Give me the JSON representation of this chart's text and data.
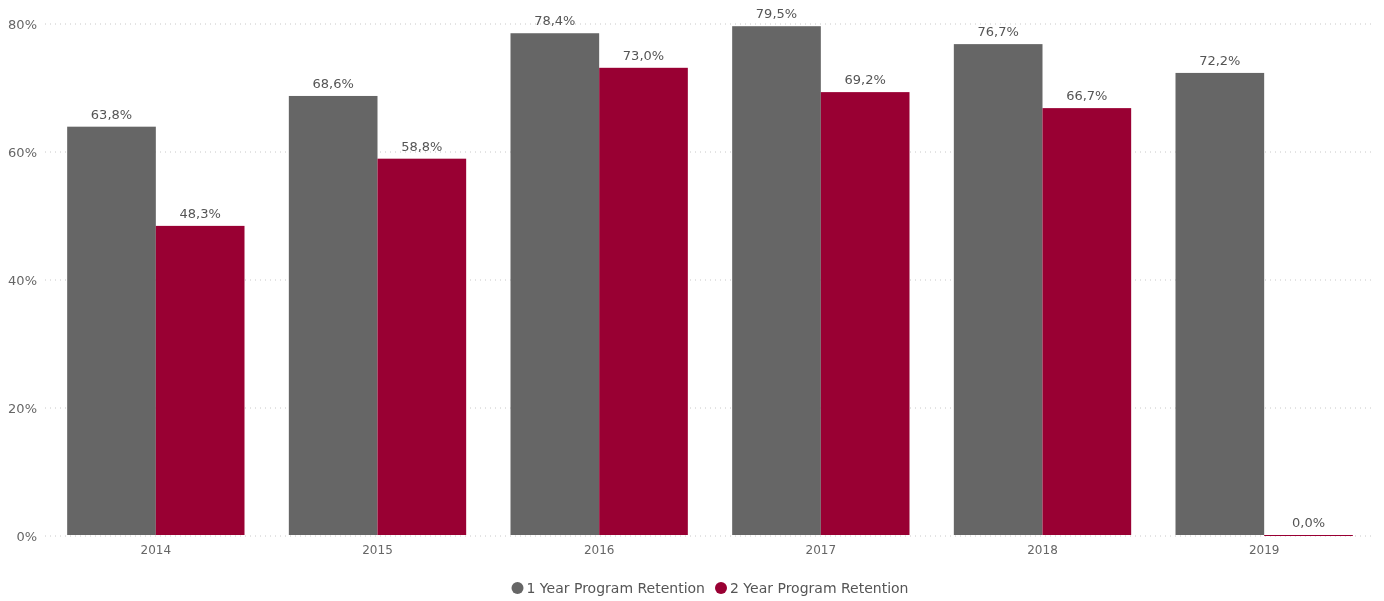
{
  "chart_data": {
    "type": "bar",
    "categories": [
      "2014",
      "2015",
      "2016",
      "2017",
      "2018",
      "2019"
    ],
    "series": [
      {
        "name": "1 Year Program Retention",
        "color": "#666666",
        "values": [
          63.8,
          68.6,
          78.4,
          79.5,
          76.7,
          72.2
        ],
        "value_labels": [
          "63,8%",
          "68,6%",
          "78,4%",
          "79,5%",
          "76,7%",
          "72,2%"
        ]
      },
      {
        "name": "2 Year Program Retention",
        "color": "#990033",
        "values": [
          48.3,
          58.8,
          73.0,
          69.2,
          66.7,
          0
        ],
        "value_labels": [
          "48,3%",
          "58,8%",
          "73,0%",
          "69,2%",
          "66,7%",
          "0,0%"
        ]
      }
    ],
    "ylim": [
      0,
      80
    ],
    "yticks": [
      {
        "value": 0,
        "label": "0%"
      },
      {
        "value": 20,
        "label": "20%"
      },
      {
        "value": 40,
        "label": "40%"
      },
      {
        "value": 60,
        "label": "60%"
      },
      {
        "value": 80,
        "label": "80%"
      }
    ],
    "grid": "y",
    "legend": "bottom"
  }
}
